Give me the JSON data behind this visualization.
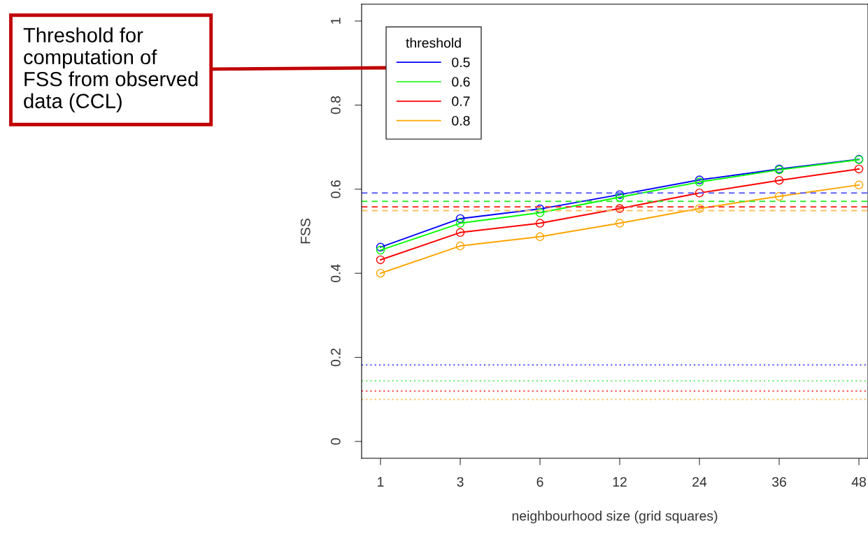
{
  "chart_data": {
    "type": "line",
    "xlabel": "neighbourhood size (grid squares)",
    "ylabel": "FSS",
    "categories": [
      "1",
      "3",
      "6",
      "12",
      "24",
      "36",
      "48"
    ],
    "ylim": [
      -0.04,
      1.04
    ],
    "yticks": [
      0,
      0.2,
      0.4,
      0.6,
      0.8,
      1
    ],
    "marker": "circle",
    "line_style": "solid",
    "grid": false,
    "legend": "top left",
    "legend_title": "threshold",
    "series": [
      {
        "name": "0.5",
        "color": "#0000ff",
        "values": [
          0.462,
          0.53,
          0.553,
          0.587,
          0.622,
          0.648,
          0.671
        ]
      },
      {
        "name": "0.6",
        "color": "#00ff00",
        "values": [
          0.455,
          0.519,
          0.544,
          0.581,
          0.617,
          0.646,
          0.67
        ]
      },
      {
        "name": "0.7",
        "color": "#ff0000",
        "values": [
          0.432,
          0.497,
          0.519,
          0.554,
          0.591,
          0.621,
          0.648
        ]
      },
      {
        "name": "0.8",
        "color": "#ffa500",
        "values": [
          0.4,
          0.465,
          0.487,
          0.519,
          0.554,
          0.583,
          0.61
        ]
      }
    ],
    "ref_lines": [
      {
        "axis": "y",
        "value": 0.591,
        "color": "#6060ff",
        "line_style": "dashed"
      },
      {
        "axis": "y",
        "value": 0.571,
        "color": "#33ee33",
        "line_style": "dashed"
      },
      {
        "axis": "y",
        "value": 0.558,
        "color": "#ff4040",
        "line_style": "dashed"
      },
      {
        "axis": "y",
        "value": 0.549,
        "color": "#ffc060",
        "line_style": "dashed"
      },
      {
        "axis": "y",
        "value": 0.182,
        "color": "#6060ff",
        "line_style": "dotted"
      },
      {
        "axis": "y",
        "value": 0.144,
        "color": "#66ee66",
        "line_style": "dotted"
      },
      {
        "axis": "y",
        "value": 0.12,
        "color": "#ff4040",
        "line_style": "dotted"
      },
      {
        "axis": "y",
        "value": 0.1,
        "color": "#ffc060",
        "line_style": "dotted"
      }
    ],
    "annotations": [
      "Threshold for\ncomputation of\nFSS from observed\ndata (CCL)"
    ]
  }
}
